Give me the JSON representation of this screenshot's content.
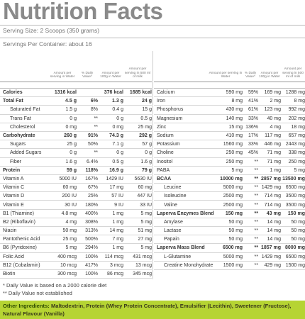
{
  "title": "Nutrition Facts",
  "serving_size": "Serving Size: 2 Scoops (350 grams)",
  "servings_per_container": "Servings Per Container: about 16",
  "left": {
    "headers": [
      "Amount per serving in Water",
      "% Daily Value*",
      "Amount per 100g in Water",
      "Amount per serving in 500 ml of milk"
    ],
    "rows": [
      {
        "name": "Calories",
        "amount": "1316 kcal",
        "per100g": "376 kcal",
        "milk": "1685 kcal",
        "bold": true
      },
      {
        "name": "Total Fat",
        "amount": "4.5 g",
        "dv": "6%",
        "per100g": "1.3 g",
        "milk": "24 g",
        "bold": true
      },
      {
        "name": "Saturated Fat",
        "amount": "1.5 g",
        "dv": "8%",
        "per100g": "0.4 g",
        "milk": "15 g",
        "indent": true
      },
      {
        "name": "Trans Fat",
        "amount": "0 g",
        "dv": "**",
        "per100g": "0 g",
        "milk": "0.5 g",
        "indent": true
      },
      {
        "name": "Cholesterol",
        "amount": "0 mg",
        "dv": "**",
        "per100g": "0 mg",
        "milk": "25 mg",
        "indent": true
      },
      {
        "name": "Carbohydrate",
        "amount": "260 g",
        "dv": "91%",
        "per100g": "74.3 g",
        "milk": "292 g",
        "bold": true
      },
      {
        "name": "Sugars",
        "amount": "25 g",
        "dv": "50%",
        "per100g": "7.1 g",
        "milk": "57 g",
        "indent": true
      },
      {
        "name": "Added Sugars",
        "amount": "0 g",
        "dv": "**",
        "per100g": "0 g",
        "milk": "0 g",
        "indent": true
      },
      {
        "name": "Fiber",
        "amount": "1.6 g",
        "dv": "6.4%",
        "per100g": "0.5 g",
        "milk": "1.6 g",
        "indent": true
      },
      {
        "name": "Protein",
        "amount": "59 g",
        "dv": "118%",
        "per100g": "16.9 g",
        "milk": "79 g",
        "bold": true
      },
      {
        "name": "Vitamin A",
        "amount": "5000 IU",
        "dv": "167%",
        "per100g": "1429 IU",
        "milk": "5630 IU"
      },
      {
        "name": "Vitamin C",
        "amount": "60 mg",
        "dv": "67%",
        "per100g": "17 mg",
        "milk": "60 mg"
      },
      {
        "name": "Vitamin D",
        "amount": "200 IU",
        "dv": "25%",
        "per100g": "57 IU",
        "milk": "447 IU"
      },
      {
        "name": "Vitamin E",
        "amount": "30 IU",
        "dv": "180%",
        "per100g": "9 IU",
        "milk": "33 IU"
      },
      {
        "name": "B1 (Thiamine)",
        "amount": "4.8 mg",
        "dv": "400%",
        "per100g": "1 mg",
        "milk": "5 mg"
      },
      {
        "name": "B2 (Riboflavin)",
        "amount": "4 mg",
        "dv": "308%",
        "per100g": "1 mg",
        "milk": "5 mg"
      },
      {
        "name": "Niacin",
        "amount": "50 mg",
        "dv": "313%",
        "per100g": "14 mg",
        "milk": "51 mg"
      },
      {
        "name": "Pantothenic Acid",
        "amount": "25 mg",
        "dv": "500%",
        "per100g": "7 mg",
        "milk": "27 mg"
      },
      {
        "name": "B6 (Pyridoxine)",
        "amount": "5 mg",
        "dv": "294%",
        "per100g": "1 mg",
        "milk": "5 mg"
      },
      {
        "name": "Folic Acid",
        "amount": "400 mcg",
        "dv": "100%",
        "per100g": "114 mcg",
        "milk": "431 mcg"
      },
      {
        "name": "B12 (Cobalamin)",
        "amount": "10 mcg",
        "dv": "417%",
        "per100g": "3 mcg",
        "milk": "13 mcg"
      },
      {
        "name": "Biotin",
        "amount": "300 mcg",
        "dv": "100%",
        "per100g": "86 mcg",
        "milk": "345 mcg"
      }
    ]
  },
  "right": {
    "headers": [
      "Amount per serving in Water",
      "% Daily Value*",
      "Amount per 100g in Water",
      "Amount per serving in 500 ml of milk"
    ],
    "rows": [
      {
        "name": "Calcium",
        "amount": "590 mg",
        "dv": "59%",
        "per100g": "169 mg",
        "milk": "1288 mg"
      },
      {
        "name": "Iron",
        "amount": "8 mg",
        "dv": "41%",
        "per100g": "2 mg",
        "milk": "8 mg"
      },
      {
        "name": "Phosphorus",
        "amount": "430 mg",
        "dv": "61%",
        "per100g": "123 mg",
        "milk": "992 mg"
      },
      {
        "name": "Magnesium",
        "amount": "140 mg",
        "dv": "33%",
        "per100g": "40 mg",
        "milk": "202 mg"
      },
      {
        "name": "Zinc",
        "amount": "15 mg",
        "dv": "136%",
        "per100g": "4 mg",
        "milk": "18 mg"
      },
      {
        "name": "Sodium",
        "amount": "410 mg",
        "dv": "17%",
        "per100g": "117 mg",
        "milk": "657 mg"
      },
      {
        "name": "Potassium",
        "amount": "1560 mg",
        "dv": "33%",
        "per100g": "446 mg",
        "milk": "2443 mg"
      },
      {
        "name": "Choline",
        "amount": "250 mg",
        "dv": "45%",
        "per100g": "71 mg",
        "milk": "338 mg"
      },
      {
        "name": "Inositol",
        "amount": "250 mg",
        "dv": "**",
        "per100g": "71 mg",
        "milk": "250 mg"
      },
      {
        "name": "PABA",
        "amount": "5 mg",
        "dv": "**",
        "per100g": "1 mg",
        "milk": "5 mg"
      },
      {
        "name": "BCAA",
        "amount": "10000 mg",
        "dv": "**",
        "per100g": "2857 mg",
        "milk": "13500 mg",
        "bold": true
      },
      {
        "name": "Leucine",
        "amount": "5000 mg",
        "dv": "**",
        "per100g": "1429 mg",
        "milk": "6500 mg",
        "indent": true
      },
      {
        "name": "Isoleucine",
        "amount": "2500 mg",
        "dv": "**",
        "per100g": "714 mg",
        "milk": "3500 mg",
        "indent": true
      },
      {
        "name": "Valine",
        "amount": "2500 mg",
        "dv": "**",
        "per100g": "714 mg",
        "milk": "3500 mg",
        "indent": true
      },
      {
        "name": "Laperva Enzymes Blend",
        "amount": "150 mg",
        "dv": "**",
        "per100g": "43 mg",
        "milk": "150 mg",
        "bold": true
      },
      {
        "name": "Amylase",
        "amount": "50 mg",
        "dv": "**",
        "per100g": "14 mg",
        "milk": "50 mg",
        "indent": true
      },
      {
        "name": "Lactase",
        "amount": "50 mg",
        "dv": "**",
        "per100g": "14 mg",
        "milk": "50 mg",
        "indent": true
      },
      {
        "name": "Papain",
        "amount": "50 mg",
        "dv": "**",
        "per100g": "14 mg",
        "milk": "50 mg",
        "indent": true
      },
      {
        "name": "Laperva Mass Blend",
        "amount": "6500 mg",
        "dv": "**",
        "per100g": "1857 mg",
        "milk": "8000 mg",
        "bold": true
      },
      {
        "name": "L-Glutamine",
        "amount": "5000 mg",
        "dv": "**",
        "per100g": "1429 mg",
        "milk": "6500 mg",
        "indent": true
      },
      {
        "name": "Creatine Monohydrate",
        "amount": "1500 mg",
        "dv": "**",
        "per100g": "429 mg",
        "milk": "1500 mg",
        "indent": true
      }
    ]
  },
  "footnotes": [
    "* Daily Value is based on a 2000 calorie diet",
    "** Daily Value not established"
  ],
  "other_ingredients": {
    "label": "Other Ingredients:",
    "text": "Maltodextrin, Protein (Whey Protein Concentrate), Emulsifier (Lecithin), Sweetener (Fructose), Natural Flavour (Vanilla)"
  }
}
